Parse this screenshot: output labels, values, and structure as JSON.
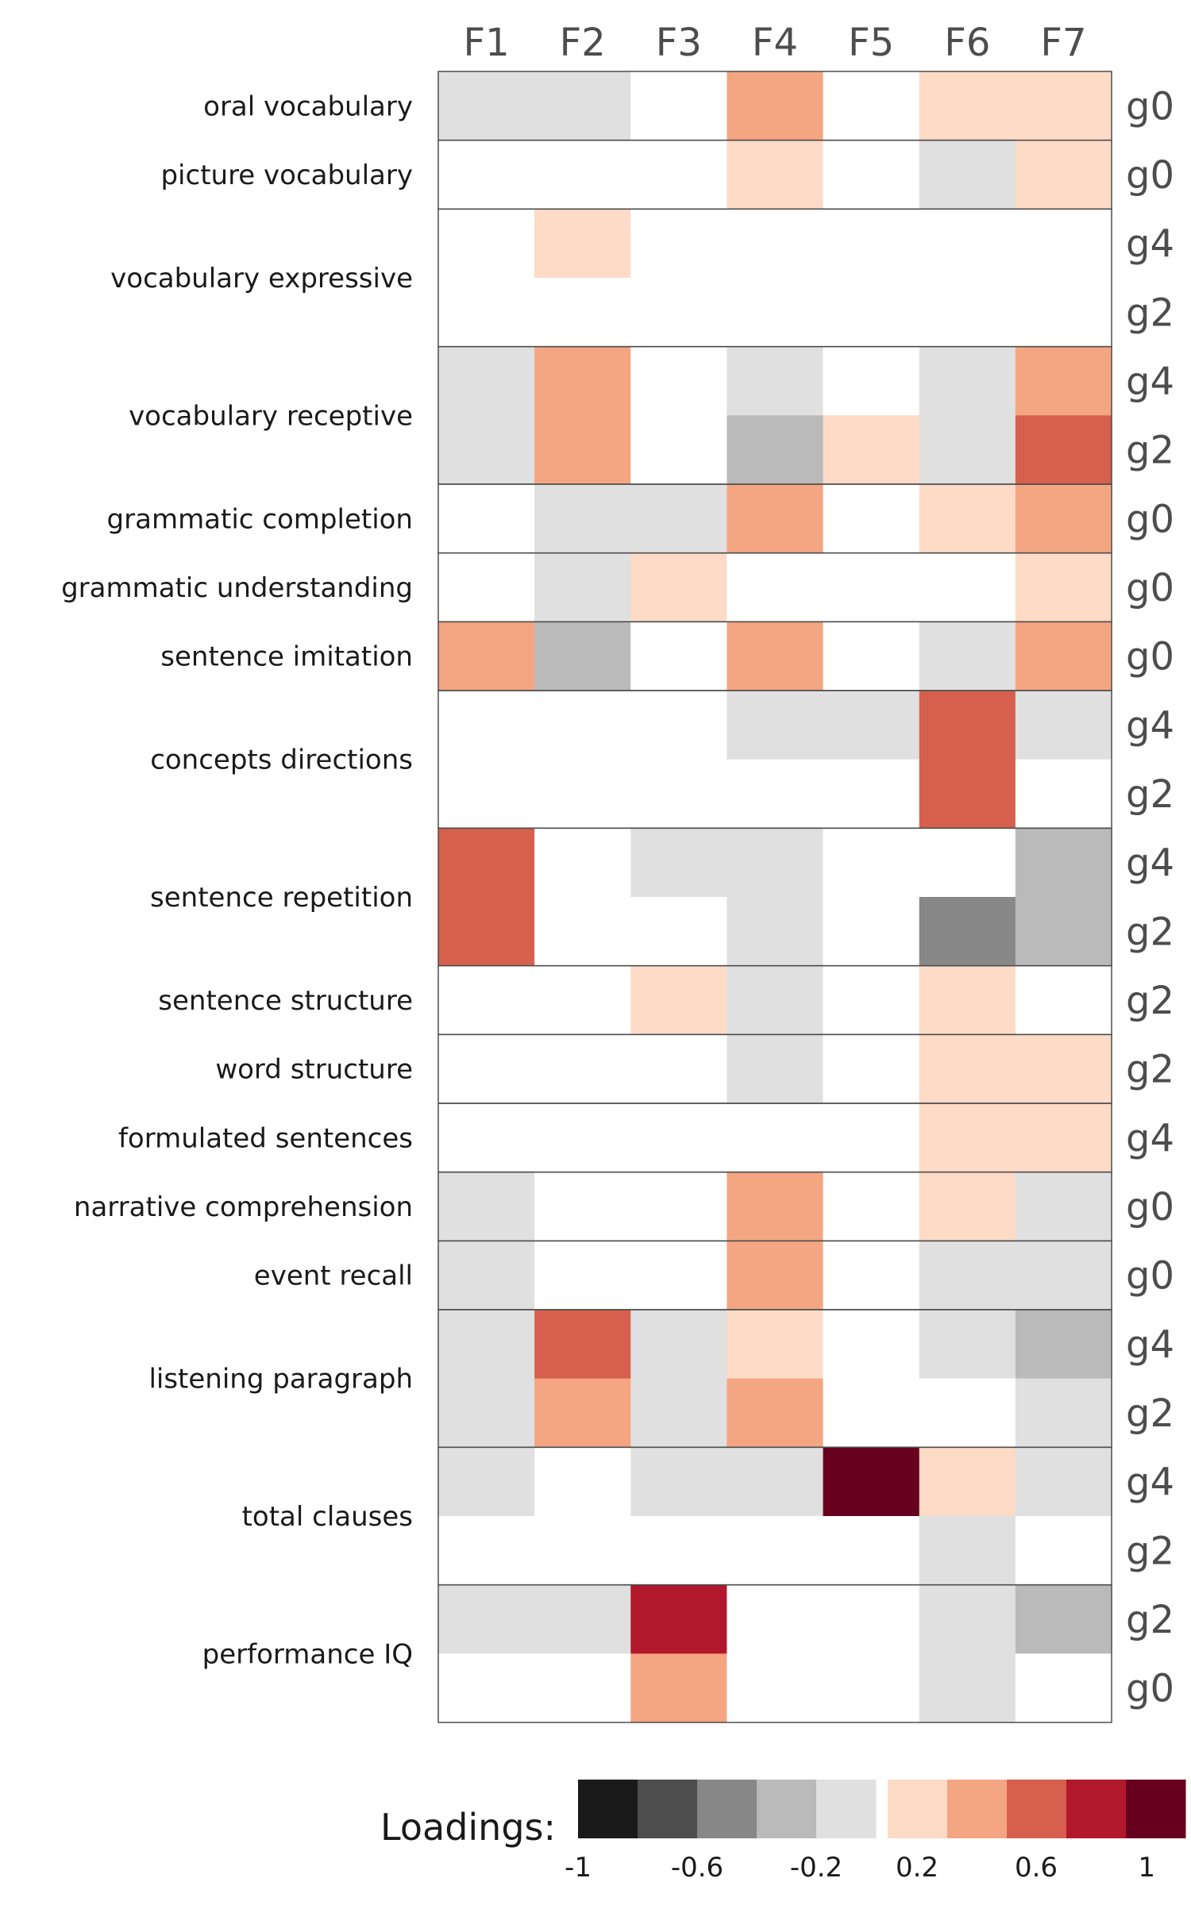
{
  "chart_data": {
    "type": "heatmap",
    "columns": [
      "F1",
      "F2",
      "F3",
      "F4",
      "F5",
      "F6",
      "F7"
    ],
    "blocks": [
      {
        "label": "oral vocabulary",
        "rows": [
          {
            "group": "g0",
            "values": [
              -0.1,
              -0.1,
              0,
              0.4,
              0,
              0.1,
              0.1
            ]
          }
        ]
      },
      {
        "label": "picture vocabulary",
        "rows": [
          {
            "group": "g0",
            "values": [
              0,
              0,
              0,
              0.1,
              0,
              -0.1,
              0.1
            ]
          }
        ]
      },
      {
        "label": "vocabulary expressive",
        "rows": [
          {
            "group": "g4",
            "values": [
              0,
              0.1,
              0,
              0,
              0,
              0,
              0
            ]
          },
          {
            "group": "g2",
            "values": [
              0,
              0,
              0,
              0,
              0,
              0,
              0
            ]
          }
        ]
      },
      {
        "label": "vocabulary receptive",
        "rows": [
          {
            "group": "g4",
            "values": [
              -0.1,
              0.4,
              0,
              -0.1,
              0,
              -0.1,
              0.4
            ]
          },
          {
            "group": "g2",
            "values": [
              -0.1,
              0.4,
              0,
              -0.3,
              0.1,
              -0.1,
              0.6
            ]
          }
        ]
      },
      {
        "label": "grammatic completion",
        "rows": [
          {
            "group": "g0",
            "values": [
              0,
              -0.1,
              -0.1,
              0.4,
              0,
              0.1,
              0.4
            ]
          }
        ]
      },
      {
        "label": "grammatic understanding",
        "rows": [
          {
            "group": "g0",
            "values": [
              0,
              -0.1,
              0.1,
              0,
              0,
              0,
              0.1
            ]
          }
        ]
      },
      {
        "label": "sentence imitation",
        "rows": [
          {
            "group": "g0",
            "values": [
              0.4,
              -0.3,
              0,
              0.4,
              0,
              -0.1,
              0.4
            ]
          }
        ]
      },
      {
        "label": "concepts directions",
        "rows": [
          {
            "group": "g4",
            "values": [
              0,
              0,
              0,
              -0.1,
              -0.1,
              0.6,
              -0.1
            ]
          },
          {
            "group": "g2",
            "values": [
              0,
              0,
              0,
              0,
              0,
              0.6,
              0
            ]
          }
        ]
      },
      {
        "label": "sentence repetition",
        "rows": [
          {
            "group": "g4",
            "values": [
              0.6,
              0,
              -0.1,
              -0.1,
              0,
              0,
              -0.3
            ]
          },
          {
            "group": "g2",
            "values": [
              0.6,
              0,
              0,
              -0.1,
              0,
              -0.5,
              -0.3
            ]
          }
        ]
      },
      {
        "label": "sentence structure",
        "rows": [
          {
            "group": "g2",
            "values": [
              0,
              0,
              0.1,
              -0.1,
              0,
              0.1,
              0
            ]
          }
        ]
      },
      {
        "label": "word structure",
        "rows": [
          {
            "group": "g2",
            "values": [
              0,
              0,
              0,
              -0.1,
              0,
              0.1,
              0.1
            ]
          }
        ]
      },
      {
        "label": "formulated sentences",
        "rows": [
          {
            "group": "g4",
            "values": [
              0,
              0,
              0,
              0,
              0,
              0.1,
              0.1
            ]
          }
        ]
      },
      {
        "label": "narrative comprehension",
        "rows": [
          {
            "group": "g0",
            "values": [
              -0.1,
              0,
              0,
              0.4,
              0,
              0.1,
              -0.1
            ]
          }
        ]
      },
      {
        "label": "event recall",
        "rows": [
          {
            "group": "g0",
            "values": [
              -0.1,
              0,
              0,
              0.4,
              0,
              -0.1,
              -0.1
            ]
          }
        ]
      },
      {
        "label": "listening paragraph",
        "rows": [
          {
            "group": "g4",
            "values": [
              -0.1,
              0.6,
              -0.1,
              0.1,
              0,
              -0.1,
              -0.3
            ]
          },
          {
            "group": "g2",
            "values": [
              -0.1,
              0.4,
              -0.1,
              0.4,
              0,
              0,
              -0.1
            ]
          }
        ]
      },
      {
        "label": "total clauses",
        "rows": [
          {
            "group": "g4",
            "values": [
              -0.1,
              0,
              -0.1,
              -0.1,
              0.9,
              0.1,
              -0.1
            ]
          },
          {
            "group": "g2",
            "values": [
              0,
              0,
              0,
              0,
              0,
              -0.1,
              0
            ]
          }
        ]
      },
      {
        "label": "performance IQ",
        "rows": [
          {
            "group": "g2",
            "values": [
              -0.1,
              -0.1,
              0.7,
              0,
              0,
              -0.1,
              -0.3
            ]
          },
          {
            "group": "g0",
            "values": [
              0,
              0,
              0.4,
              0,
              0,
              -0.1,
              0
            ]
          }
        ]
      }
    ],
    "color_scale": {
      "negative_bins": [
        {
          "from": -1.0,
          "to": -0.8,
          "color": "#1a1a1a"
        },
        {
          "from": -0.8,
          "to": -0.6,
          "color": "#4d4d4d"
        },
        {
          "from": -0.6,
          "to": -0.4,
          "color": "#878787"
        },
        {
          "from": -0.4,
          "to": -0.2,
          "color": "#bababa"
        },
        {
          "from": -0.2,
          "to": 0.0,
          "color": "#e0e0e0"
        }
      ],
      "positive_bins": [
        {
          "from": 0.0,
          "to": 0.2,
          "color": "#fddbc7"
        },
        {
          "from": 0.2,
          "to": 0.4,
          "color": "#f4a582"
        },
        {
          "from": 0.4,
          "to": 0.6,
          "color": "#d6604d"
        },
        {
          "from": 0.6,
          "to": 0.8,
          "color": "#b2182b"
        },
        {
          "from": 0.8,
          "to": 1.0,
          "color": "#67001f"
        }
      ],
      "zero_color": "#ffffff"
    },
    "legend": {
      "title": "Loadings:",
      "ticks": [
        "-1",
        "-0.6",
        "-0.2",
        "0.2",
        "0.6",
        "1"
      ]
    }
  }
}
